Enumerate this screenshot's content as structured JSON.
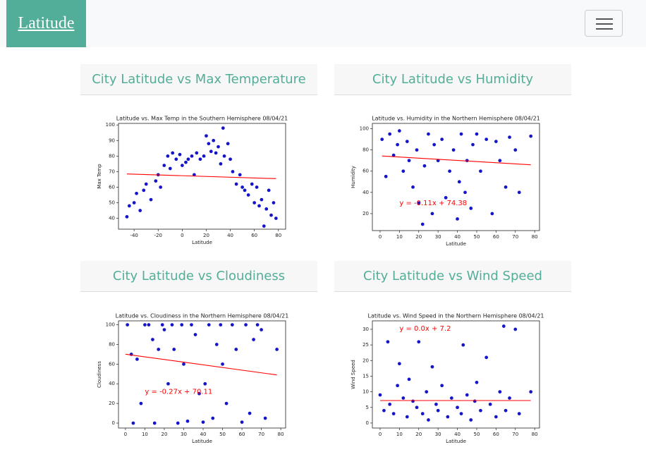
{
  "navbar": {
    "brand": "Latitude"
  },
  "cards": [
    {
      "title": "City Latitude vs Max Temperature"
    },
    {
      "title": "City Latitude vs Humidity"
    },
    {
      "title": "City Latitude vs Cloudiness"
    },
    {
      "title": "City Latitude vs Wind Speed"
    }
  ],
  "chart_data": [
    {
      "type": "scatter",
      "title": "Latitude vs. Max Temp in the Southern Hemisphere 08/04/21",
      "x_label": "Latitude",
      "y_label": "Max Temp",
      "color": "#1414c8",
      "xlim": [
        -53,
        86
      ],
      "ylim": [
        33,
        101
      ],
      "xticks": [
        -40,
        -20,
        0,
        20,
        40,
        60,
        80
      ],
      "yticks": [
        40,
        50,
        60,
        70,
        80,
        90,
        100
      ],
      "x": [
        -46,
        -44,
        -40,
        -38,
        -35,
        -32,
        -30,
        -26,
        -22,
        -20,
        -18,
        -15,
        -12,
        -10,
        -8,
        -5,
        -2,
        0,
        3,
        5,
        8,
        10,
        12,
        15,
        18,
        20,
        22,
        24,
        26,
        28,
        30,
        32,
        34,
        35,
        38,
        40,
        42,
        45,
        48,
        50,
        52,
        55,
        58,
        60,
        62,
        64,
        66,
        68,
        70,
        72,
        74,
        76,
        78
      ],
      "y": [
        41,
        48,
        50,
        56,
        45,
        58,
        62,
        52,
        64,
        68,
        60,
        74,
        80,
        72,
        82,
        78,
        81,
        74,
        76,
        78,
        80,
        68,
        82,
        78,
        80,
        93,
        88,
        83,
        90,
        82,
        86,
        75,
        98,
        80,
        88,
        78,
        70,
        62,
        68,
        60,
        58,
        55,
        62,
        50,
        60,
        48,
        52,
        35,
        46,
        58,
        42,
        50,
        40
      ],
      "fit": {
        "color": "#ff0000",
        "x": [
          -46,
          78
        ],
        "y": [
          68.5,
          65.5
        ]
      }
    },
    {
      "type": "scatter",
      "title": "Latitude vs. Humidity in the Northern Hemisphere 08/04/21",
      "x_label": "Latitude",
      "y_label": "Humidity",
      "color": "#1414c8",
      "xlim": [
        -4,
        82.5
      ],
      "ylim": [
        4,
        105
      ],
      "xticks": [
        0,
        10,
        20,
        30,
        40,
        50,
        60,
        70,
        80
      ],
      "yticks": [
        20,
        40,
        60,
        80,
        100
      ],
      "x": [
        1,
        3,
        5,
        7,
        9,
        10,
        12,
        14,
        15,
        17,
        19,
        20,
        22,
        23,
        25,
        27,
        28,
        30,
        32,
        34,
        36,
        38,
        40,
        41,
        42,
        44,
        45,
        47,
        48,
        50,
        52,
        55,
        58,
        60,
        62,
        65,
        67,
        70,
        72,
        78
      ],
      "y": [
        90,
        55,
        95,
        75,
        85,
        98,
        60,
        88,
        70,
        45,
        80,
        30,
        10,
        65,
        95,
        20,
        85,
        70,
        90,
        35,
        60,
        80,
        15,
        50,
        95,
        40,
        70,
        25,
        85,
        95,
        60,
        90,
        20,
        88,
        70,
        45,
        92,
        80,
        40,
        93
      ],
      "fit": {
        "color": "#ff0000",
        "x": [
          1,
          78
        ],
        "y": [
          74.3,
          66
        ]
      },
      "annotation": "y = -0.11x + 74.38"
    },
    {
      "type": "scatter",
      "title": "Latitude vs. Cloudiness in the Northern Hemisphere 08/04/21",
      "x_label": "Latitude",
      "y_label": "Cloudiness",
      "color": "#1414c8",
      "xlim": [
        -3.6,
        82.5
      ],
      "ylim": [
        -5,
        104
      ],
      "xticks": [
        0,
        10,
        20,
        30,
        40,
        50,
        60,
        70,
        80
      ],
      "yticks": [
        0,
        20,
        40,
        60,
        80,
        100
      ],
      "x": [
        1,
        3,
        4,
        6,
        8,
        10,
        12,
        14,
        15,
        17,
        19,
        20,
        22,
        24,
        25,
        27,
        29,
        30,
        32,
        34,
        36,
        38,
        40,
        41,
        43,
        45,
        47,
        49,
        50,
        52,
        55,
        57,
        60,
        62,
        64,
        66,
        68,
        70,
        72,
        78
      ],
      "y": [
        100,
        70,
        0,
        65,
        20,
        100,
        100,
        85,
        0,
        75,
        100,
        95,
        40,
        100,
        75,
        0,
        100,
        60,
        2,
        100,
        90,
        30,
        1,
        40,
        100,
        5,
        80,
        100,
        60,
        20,
        100,
        75,
        1,
        100,
        10,
        85,
        100,
        95,
        5,
        75
      ],
      "fit": {
        "color": "#ff0000",
        "x": [
          0,
          78
        ],
        "y": [
          70.1,
          49
        ]
      },
      "annotation": "y = -0.27x + 70.11"
    },
    {
      "type": "scatter",
      "title": "Latitude vs. Wind Speed in the Northern Hemisphere 08/04/21",
      "x_label": "Latitude",
      "y_label": "Wind Speed",
      "color": "#1414c8",
      "xlim": [
        -4,
        82.5
      ],
      "ylim": [
        -1.6,
        32.7
      ],
      "xticks": [
        0,
        10,
        20,
        30,
        40,
        50,
        60,
        70,
        80
      ],
      "yticks": [
        0,
        5,
        10,
        15,
        20,
        25,
        30
      ],
      "x": [
        0,
        2,
        4,
        5,
        7,
        9,
        10,
        12,
        14,
        15,
        17,
        19,
        20,
        22,
        24,
        25,
        27,
        29,
        30,
        32,
        35,
        37,
        40,
        42,
        43,
        45,
        47,
        49,
        50,
        52,
        55,
        57,
        60,
        62,
        64,
        65,
        67,
        70,
        72,
        78
      ],
      "y": [
        9,
        4,
        26,
        6,
        3,
        12,
        19,
        8,
        2,
        14,
        7,
        5,
        26,
        3,
        10,
        1,
        18,
        6,
        4,
        12,
        2,
        8,
        5,
        3,
        25,
        9,
        1,
        7,
        13,
        4,
        21,
        6,
        2,
        10,
        31,
        4,
        8,
        30,
        3,
        10
      ],
      "fit": {
        "color": "#ff0000",
        "x": [
          0,
          78
        ],
        "y": [
          7.2,
          7.2
        ]
      },
      "annotation": "y = 0.0x + 7.2"
    }
  ]
}
